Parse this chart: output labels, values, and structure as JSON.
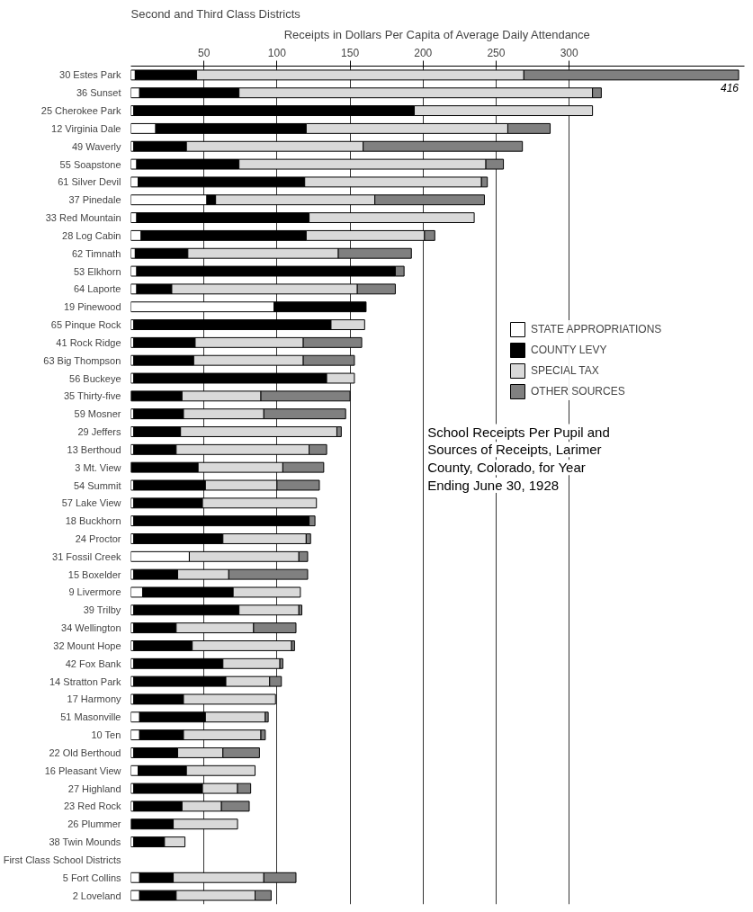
{
  "chart_data": {
    "type": "bar",
    "orientation": "horizontal",
    "stacked": true,
    "title": "School Receipts Per Pupil and Sources of Receipts, Larimer County, Colorado, for Year Ending June 30, 1928",
    "xlabel": "Receipts in Dollars Per Capita of Average Daily Attendance",
    "ylabel": "Second and Third Class Districts",
    "categories": [
      "30 Estes Park",
      "36 Sunset",
      "25 Cherokee Park",
      "12 Virginia Dale",
      "49 Waverly",
      "55 Soapstone",
      "61 Silver Devil",
      "37 Pinedale",
      "33 Red Mountain",
      "28 Log Cabin",
      "62 Timnath",
      "53 Elkhorn",
      "64 Laporte",
      "19 Pinewood",
      "65 Pinque Rock",
      "41 Rock Ridge",
      "63 Big Thompson",
      "56 Buckeye",
      "35 Thirty-five",
      "59 Mosner",
      "29 Jeffers",
      "13 Berthoud",
      "3 Mt. View",
      "54 Summit",
      "57 Lake View",
      "18 Buckhorn",
      "24 Proctor",
      "31 Fossil Creek",
      "15 Boxelder",
      "9 Livermore",
      "39 Trilby",
      "34 Wellington",
      "32 Mount Hope",
      "42 Fox Bank",
      "14 Stratton Park",
      "17 Harmony",
      "51 Masonville",
      "10 Ten",
      "22 Old Berthoud",
      "16 Pleasant View",
      "27 Highland",
      "23 Red Rock",
      "26 Plummer",
      "38 Twin Mounds",
      "First Class School Districts",
      "5 Fort Collins",
      "2 Loveland"
    ],
    "series": [
      {
        "name": "STATE APPROPRIATIONS",
        "color": "#ffffff",
        "values": [
          3,
          6,
          2,
          17,
          2,
          4,
          5,
          52,
          4,
          7,
          3,
          4,
          4,
          98,
          2,
          2,
          2,
          2,
          null,
          2,
          2,
          2,
          null,
          2,
          2,
          2,
          2,
          40,
          2,
          8,
          2,
          2,
          2,
          2,
          2,
          2,
          6,
          6,
          2,
          5,
          2,
          2,
          null,
          2,
          null,
          6,
          6
        ]
      },
      {
        "name": "COUNTY LEVY",
        "color": "#000000",
        "values": [
          42,
          68,
          192,
          103,
          36,
          70,
          114,
          6,
          118,
          113,
          36,
          177,
          24,
          63,
          135,
          42,
          41,
          132,
          35,
          34,
          32,
          29,
          46,
          49,
          47,
          120,
          61,
          null,
          30,
          62,
          72,
          29,
          40,
          61,
          63,
          34,
          45,
          30,
          30,
          33,
          47,
          33,
          29,
          21,
          null,
          23,
          25
        ]
      },
      {
        "name": "SPECIAL TAX",
        "color": "#d9d9d9",
        "values": [
          224,
          242,
          122,
          138,
          121,
          169,
          121,
          109,
          113,
          81,
          103,
          null,
          127,
          null,
          23,
          74,
          75,
          19,
          54,
          55,
          107,
          91,
          58,
          49,
          78,
          null,
          57,
          75,
          35,
          46,
          41,
          53,
          68,
          39,
          30,
          63,
          41,
          53,
          31,
          47,
          24,
          27,
          44,
          14,
          null,
          62,
          54
        ]
      },
      {
        "name": "OTHER SOURCES",
        "color": "#808080",
        "values": [
          147,
          6,
          null,
          29,
          109,
          12,
          4,
          75,
          null,
          7,
          50,
          6,
          26,
          null,
          null,
          40,
          35,
          null,
          61,
          56,
          3,
          12,
          28,
          29,
          null,
          4,
          3,
          6,
          54,
          null,
          2,
          29,
          2,
          2,
          8,
          null,
          2,
          3,
          25,
          null,
          9,
          19,
          null,
          null,
          null,
          22,
          11
        ]
      }
    ],
    "xlim": [
      0,
      420
    ],
    "xticks": [
      50,
      100,
      150,
      200,
      250,
      300
    ],
    "grid": "x",
    "legend": "right",
    "annotations": [
      {
        "text": "416",
        "x": 416,
        "y": "30 Estes Park"
      }
    ]
  }
}
